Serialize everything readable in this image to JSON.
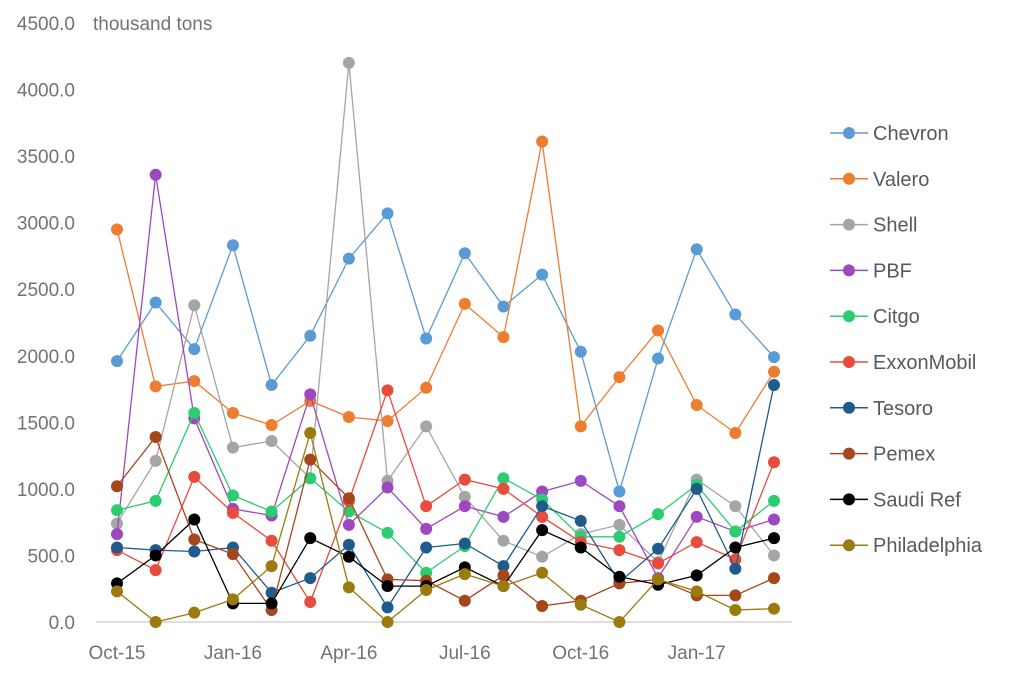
{
  "chart_data": {
    "type": "line",
    "unit_label": "thousand tons",
    "ylim": [
      0,
      4500
    ],
    "y_ticks": [
      0,
      500,
      1000,
      1500,
      2000,
      2500,
      3000,
      3500,
      4000,
      4500
    ],
    "y_tick_labels": [
      "0.0",
      "500.0",
      "1000.0",
      "1500.0",
      "2000.0",
      "2500.0",
      "3000.0",
      "3500.0",
      "4000.0",
      "4500.0"
    ],
    "x_count": 18,
    "x_tick_labels": [
      {
        "index": 0,
        "label": "Oct-15"
      },
      {
        "index": 3,
        "label": "Jan-16"
      },
      {
        "index": 6,
        "label": "Apr-16"
      },
      {
        "index": 9,
        "label": "Jul-16"
      },
      {
        "index": 12,
        "label": "Oct-16"
      },
      {
        "index": 15,
        "label": "Jan-17"
      }
    ],
    "legend_position": "right",
    "grid": false,
    "series": [
      {
        "name": "Chevron",
        "color": "#5b9bd5",
        "values": [
          1960,
          2400,
          2050,
          2830,
          1780,
          2150,
          2730,
          3070,
          2130,
          2770,
          2370,
          2610,
          2030,
          980,
          1980,
          2800,
          2310,
          1990
        ]
      },
      {
        "name": "Valero",
        "color": "#ed7d31",
        "values": [
          2950,
          1770,
          1810,
          1570,
          1480,
          1660,
          1540,
          1510,
          1760,
          2390,
          2140,
          3610,
          1470,
          1840,
          2190,
          1630,
          1420,
          1880
        ]
      },
      {
        "name": "Shell",
        "color": "#a5a5a5",
        "values": [
          740,
          1210,
          2380,
          1310,
          1360,
          1080,
          4200,
          1060,
          1470,
          940,
          610,
          490,
          660,
          730,
          450,
          1070,
          870,
          500
        ]
      },
      {
        "name": "PBF",
        "color": "#9e48c0",
        "values": [
          660,
          3360,
          1530,
          850,
          800,
          1710,
          730,
          1010,
          700,
          870,
          790,
          980,
          1060,
          870,
          330,
          790,
          680,
          770
        ]
      },
      {
        "name": "Citgo",
        "color": "#2ecc71",
        "values": [
          840,
          910,
          1570,
          950,
          830,
          1080,
          830,
          670,
          370,
          570,
          1080,
          920,
          640,
          640,
          810,
          1030,
          680,
          910
        ]
      },
      {
        "name": "ExxonMobil",
        "color": "#e84c3d",
        "values": [
          540,
          390,
          1090,
          820,
          610,
          150,
          910,
          1740,
          870,
          1070,
          1000,
          790,
          600,
          540,
          440,
          600,
          470,
          1200
        ]
      },
      {
        "name": "Tesoro",
        "color": "#1f5c8b",
        "values": [
          560,
          540,
          530,
          560,
          220,
          330,
          580,
          110,
          560,
          590,
          420,
          870,
          760,
          300,
          550,
          1000,
          400,
          1780
        ]
      },
      {
        "name": "Pemex",
        "color": "#a6461c",
        "values": [
          1020,
          1390,
          620,
          510,
          90,
          1220,
          930,
          320,
          310,
          160,
          350,
          120,
          160,
          290,
          320,
          200,
          200,
          330
        ]
      },
      {
        "name": "Saudi Ref",
        "color": "#000000",
        "values": [
          290,
          500,
          770,
          140,
          140,
          630,
          490,
          270,
          270,
          410,
          270,
          690,
          560,
          340,
          280,
          350,
          560,
          630
        ]
      },
      {
        "name": "Philadelphia",
        "color": "#9c7b0e",
        "values": [
          230,
          0,
          70,
          170,
          420,
          1420,
          260,
          0,
          240,
          360,
          270,
          370,
          130,
          0,
          320,
          230,
          90,
          100
        ]
      }
    ]
  }
}
